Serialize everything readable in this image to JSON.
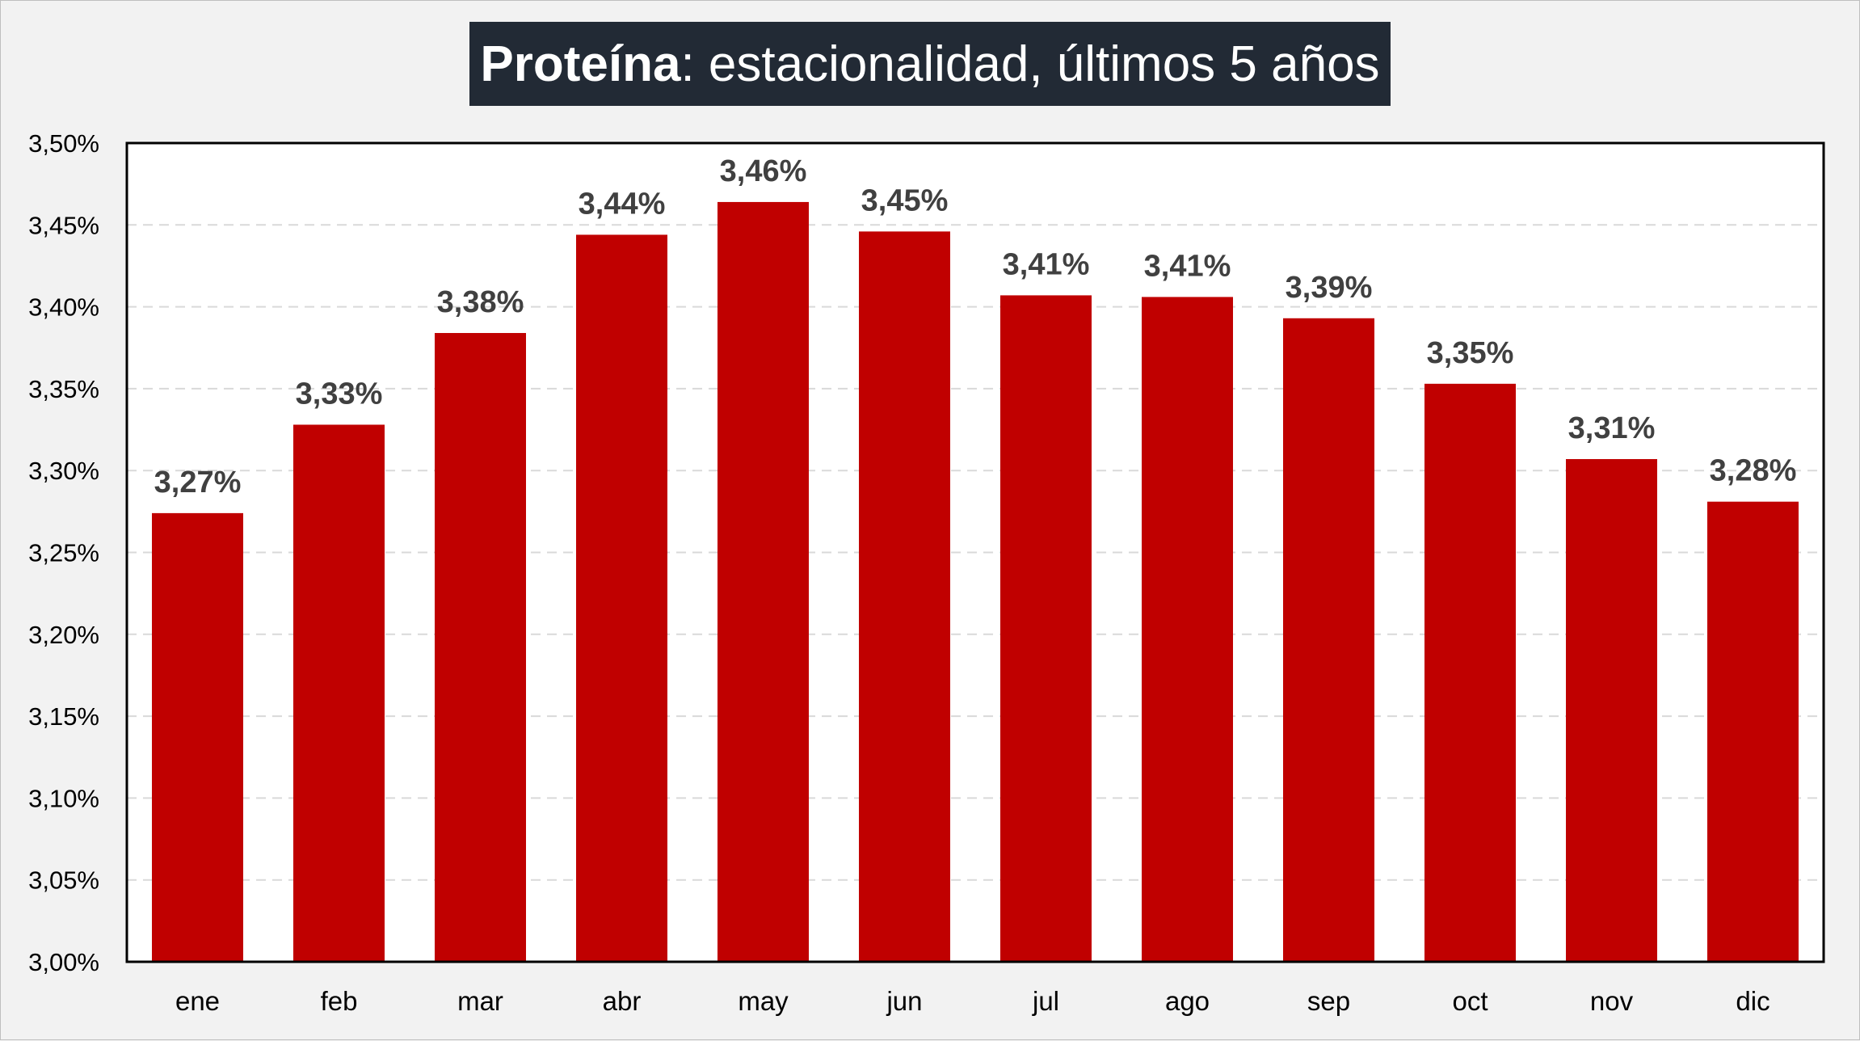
{
  "title": {
    "bold": "Proteína",
    "rest": ": estacionalidad, últimos 5 años"
  },
  "colors": {
    "bar": "#c00000",
    "background": "#f2f2f2",
    "plot_background": "#ffffff",
    "title_background": "#222a35",
    "title_text": "#ffffff",
    "data_label": "#404040",
    "gridline": "#d9d9d9"
  },
  "chart_data": {
    "type": "bar",
    "title": "Proteína: estacionalidad, últimos 5 años",
    "categories": [
      "ene",
      "feb",
      "mar",
      "abr",
      "may",
      "jun",
      "jul",
      "ago",
      "sep",
      "oct",
      "nov",
      "dic"
    ],
    "values": [
      3.274,
      3.328,
      3.384,
      3.444,
      3.464,
      3.446,
      3.407,
      3.406,
      3.393,
      3.353,
      3.307,
      3.281
    ],
    "data_labels": [
      "3,27%",
      "3,33%",
      "3,38%",
      "3,44%",
      "3,46%",
      "3,45%",
      "3,41%",
      "3,41%",
      "3,39%",
      "3,35%",
      "3,31%",
      "3,28%"
    ],
    "yticks": [
      3.0,
      3.05,
      3.1,
      3.15,
      3.2,
      3.25,
      3.3,
      3.35,
      3.4,
      3.45,
      3.5
    ],
    "ytick_labels": [
      "3,00%",
      "3,05%",
      "3,10%",
      "3,15%",
      "3,20%",
      "3,25%",
      "3,30%",
      "3,35%",
      "3,40%",
      "3,45%",
      "3,50%"
    ],
    "ylim": [
      3.0,
      3.5
    ],
    "xlabel": "",
    "ylabel": "",
    "grid": "horizontal dashed",
    "legend": "none"
  }
}
